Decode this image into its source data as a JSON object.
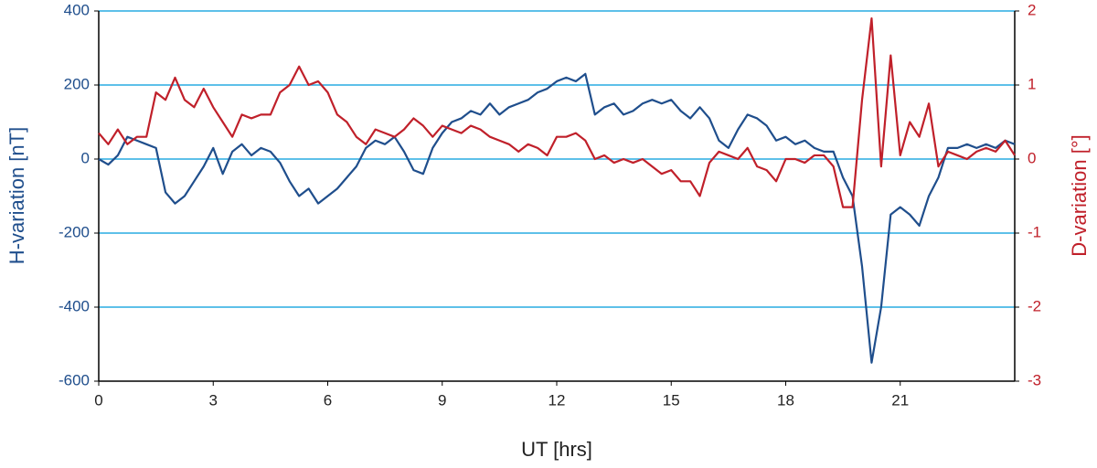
{
  "chart_data": {
    "type": "line",
    "x_label": "UT [hrs]",
    "y_label": "H-variation [nT]",
    "y2_label": "D-variation [°]",
    "xlim": [
      0,
      24
    ],
    "xticks": [
      0,
      3,
      6,
      9,
      12,
      15,
      18,
      21
    ],
    "ylim": [
      -600,
      400
    ],
    "yticks": [
      -600,
      -400,
      -200,
      0,
      200,
      400
    ],
    "y2lim": [
      -3,
      2
    ],
    "y2ticks": [
      -3,
      -2,
      -1,
      0,
      1,
      2
    ],
    "grid": true,
    "grid_color": "#29abe2",
    "x": [
      0,
      0.25,
      0.5,
      0.75,
      1,
      1.25,
      1.5,
      1.75,
      2,
      2.25,
      2.5,
      2.75,
      3,
      3.25,
      3.5,
      3.75,
      4,
      4.25,
      4.5,
      4.75,
      5,
      5.25,
      5.5,
      5.75,
      6,
      6.25,
      6.5,
      6.75,
      7,
      7.25,
      7.5,
      7.75,
      8,
      8.25,
      8.5,
      8.75,
      9,
      9.25,
      9.5,
      9.75,
      10,
      10.25,
      10.5,
      10.75,
      11,
      11.25,
      11.5,
      11.75,
      12,
      12.25,
      12.5,
      12.75,
      13,
      13.25,
      13.5,
      13.75,
      14,
      14.25,
      14.5,
      14.75,
      15,
      15.25,
      15.5,
      15.75,
      16,
      16.25,
      16.5,
      16.75,
      17,
      17.25,
      17.5,
      17.75,
      18,
      18.25,
      18.5,
      18.75,
      19,
      19.25,
      19.5,
      19.75,
      20,
      20.25,
      20.5,
      20.75,
      21,
      21.25,
      21.5,
      21.75,
      22,
      22.25,
      22.5,
      22.75,
      23,
      23.25,
      23.5,
      23.75,
      24
    ],
    "series": [
      {
        "name": "H-variation",
        "color": "#1f4e8c",
        "axis": "y",
        "values": [
          0,
          -15,
          10,
          60,
          50,
          40,
          30,
          -90,
          -120,
          -100,
          -60,
          -20,
          30,
          -40,
          20,
          40,
          10,
          30,
          20,
          -10,
          -60,
          -100,
          -80,
          -120,
          -100,
          -80,
          -50,
          -20,
          30,
          50,
          40,
          60,
          20,
          -30,
          -40,
          30,
          70,
          100,
          110,
          130,
          120,
          150,
          120,
          140,
          150,
          160,
          180,
          190,
          210,
          220,
          210,
          230,
          120,
          140,
          150,
          120,
          130,
          150,
          160,
          150,
          160,
          130,
          110,
          140,
          110,
          50,
          30,
          80,
          120,
          110,
          90,
          50,
          60,
          40,
          50,
          30,
          20,
          20,
          -50,
          -100,
          -290,
          -550,
          -400,
          -150,
          -130,
          -150,
          -180,
          -100,
          -50,
          30,
          30,
          40,
          30,
          40,
          30,
          50,
          40
        ]
      },
      {
        "name": "D-variation",
        "color": "#c0202a",
        "axis": "y2",
        "values": [
          0.35,
          0.2,
          0.4,
          0.2,
          0.3,
          0.3,
          0.9,
          0.8,
          1.1,
          0.8,
          0.7,
          0.95,
          0.7,
          0.5,
          0.3,
          0.6,
          0.55,
          0.6,
          0.6,
          0.9,
          1.0,
          1.25,
          1.0,
          1.05,
          0.9,
          0.6,
          0.5,
          0.3,
          0.2,
          0.4,
          0.35,
          0.3,
          0.4,
          0.55,
          0.45,
          0.3,
          0.45,
          0.4,
          0.35,
          0.45,
          0.4,
          0.3,
          0.25,
          0.2,
          0.1,
          0.2,
          0.15,
          0.05,
          0.3,
          0.3,
          0.35,
          0.25,
          0.0,
          0.05,
          -0.05,
          0.0,
          -0.05,
          0.0,
          -0.1,
          -0.2,
          -0.15,
          -0.3,
          -0.3,
          -0.5,
          -0.05,
          0.1,
          0.05,
          0.0,
          0.15,
          -0.1,
          -0.15,
          -0.3,
          0.0,
          0.0,
          -0.05,
          0.05,
          0.05,
          -0.1,
          -0.65,
          -0.65,
          0.8,
          1.9,
          -0.1,
          1.4,
          0.05,
          0.5,
          0.3,
          0.75,
          -0.1,
          0.1,
          0.05,
          0.0,
          0.1,
          0.15,
          0.1,
          0.25,
          0.05
        ]
      }
    ]
  }
}
